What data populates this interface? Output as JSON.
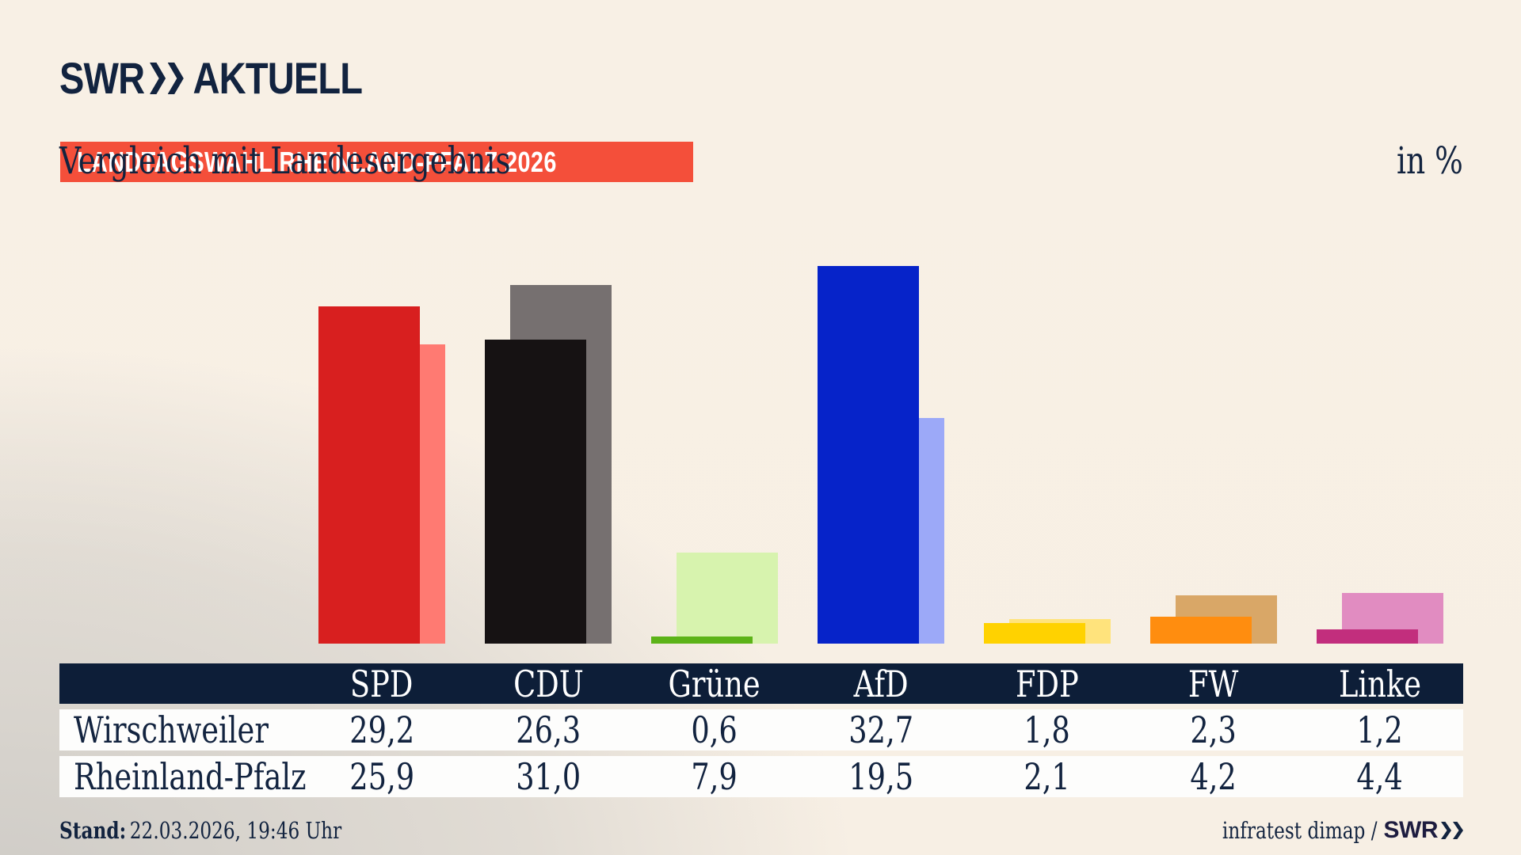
{
  "header": {
    "logo": {
      "brand": "SWR",
      "product": "AKTUELL",
      "chevrons_icon": "double-chevron-right"
    },
    "badge": "LANDTAGSWAHL RHEINLAND-PFALZ 2026",
    "title": "Vergleich mit Landesergebnis",
    "unit_label": "in %"
  },
  "chart_data": {
    "type": "bar",
    "title": "Vergleich mit Landesergebnis",
    "ylabel": "in %",
    "ylim": [
      0,
      35
    ],
    "grid": false,
    "legend_position": "none",
    "categories": [
      "SPD",
      "CDU",
      "Grüne",
      "AfD",
      "FDP",
      "FW",
      "Linke"
    ],
    "series": [
      {
        "name": "Wirschweiler",
        "values": [
          "29,2",
          "26,3",
          "0,6",
          "32,7",
          "1,8",
          "2,3",
          "1,2"
        ]
      },
      {
        "name": "Rheinland-Pfalz",
        "values": [
          "25,9",
          "31,0",
          "7,9",
          "19,5",
          "2,1",
          "4,2",
          "4,4"
        ]
      }
    ],
    "party_colors": [
      {
        "party": "SPD",
        "front": "#d81f1f",
        "back": "#ff7a72"
      },
      {
        "party": "CDU",
        "front": "#161213",
        "back": "#767070"
      },
      {
        "party": "Grüne",
        "front": "#5cb318",
        "back": "#d7f3ae"
      },
      {
        "party": "AfD",
        "front": "#0623c9",
        "back": "#9ca9f8"
      },
      {
        "party": "FDP",
        "front": "#ffd200",
        "back": "#ffe37c"
      },
      {
        "party": "FW",
        "front": "#ff8d0f",
        "back": "#d9a767"
      },
      {
        "party": "Linke",
        "front": "#c22e7d",
        "back": "#e18cc1"
      }
    ]
  },
  "table": {
    "columns": [
      "SPD",
      "CDU",
      "Grüne",
      "AfD",
      "FDP",
      "FW",
      "Linke"
    ],
    "rows": [
      {
        "label": "Wirschweiler",
        "values": [
          "29,2",
          "26,3",
          "0,6",
          "32,7",
          "1,8",
          "2,3",
          "1,2"
        ]
      },
      {
        "label": "Rheinland-Pfalz",
        "values": [
          "25,9",
          "31,0",
          "7,9",
          "19,5",
          "2,1",
          "4,2",
          "4,4"
        ]
      }
    ]
  },
  "footer": {
    "stand_label": "Stand:",
    "stand_value": "22.03.2026, 19:46 Uhr",
    "source_prefix": "infratest dimap /",
    "source_brand": "SWR"
  },
  "colors": {
    "navy": "#12233f",
    "table_header_bg": "#0d1e38",
    "badge_bg": "#f44f3a",
    "background_cream": "#f7efe4",
    "background_gray": "#cfccc7",
    "row_bg": "#fdfdfc"
  }
}
